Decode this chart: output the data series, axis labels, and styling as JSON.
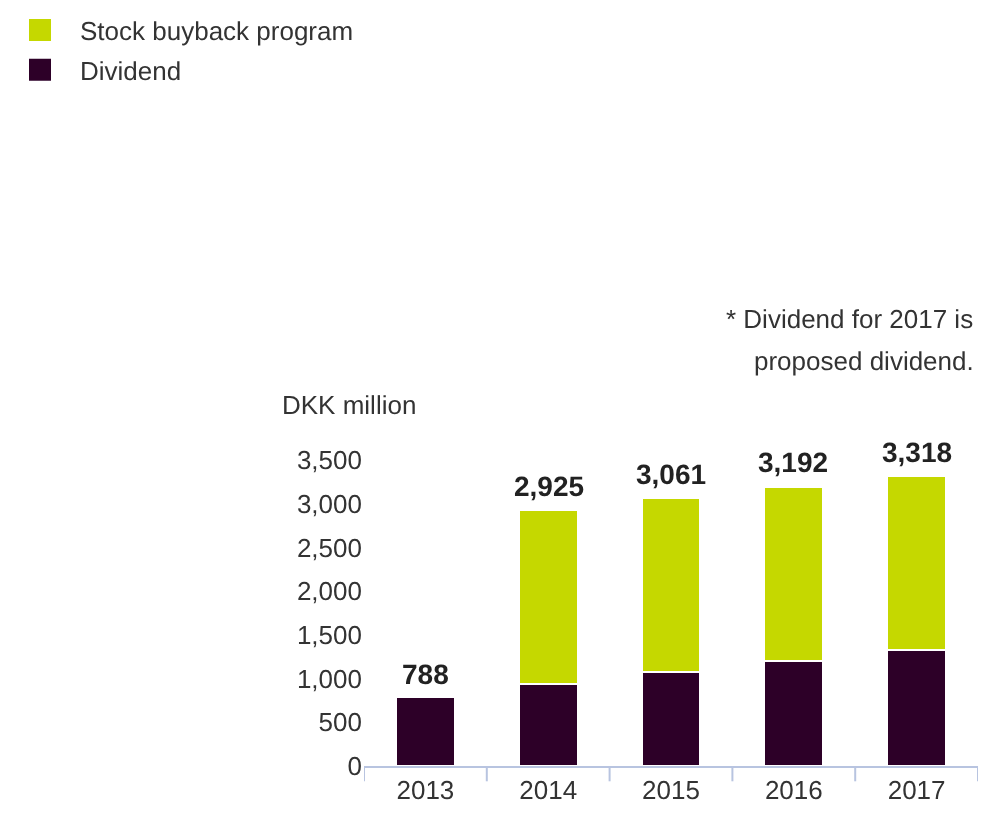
{
  "chart_data": {
    "type": "bar",
    "stacked": true,
    "ylabel": "DKK million",
    "categories": [
      "2013",
      "2014",
      "2015",
      "2016",
      "2017"
    ],
    "series": [
      {
        "name": "Dividend",
        "color": "#2d0028",
        "values": [
          788,
          935,
          1073,
          1203,
          1332
        ]
      },
      {
        "name": "Stock buyback program",
        "color": "#c5d800",
        "values": [
          null,
          1990,
          1988,
          1989,
          1986
        ]
      }
    ],
    "totals": [
      "788",
      "2,925",
      "3,061",
      "3,192",
      "3,318"
    ],
    "ylim": [
      0,
      3500
    ],
    "yticks": [
      {
        "value": 0,
        "label": "0"
      },
      {
        "value": 500,
        "label": "500"
      },
      {
        "value": 1000,
        "label": "1,000"
      },
      {
        "value": 1500,
        "label": "1,500"
      },
      {
        "value": 2000,
        "label": "2,000"
      },
      {
        "value": 2500,
        "label": "2,500"
      },
      {
        "value": 3000,
        "label": "3,000"
      },
      {
        "value": 3500,
        "label": "3,500"
      }
    ],
    "legend": "top left",
    "grid": false,
    "annotations": [
      "* Dividend for 2017 is",
      "proposed dividend."
    ]
  }
}
